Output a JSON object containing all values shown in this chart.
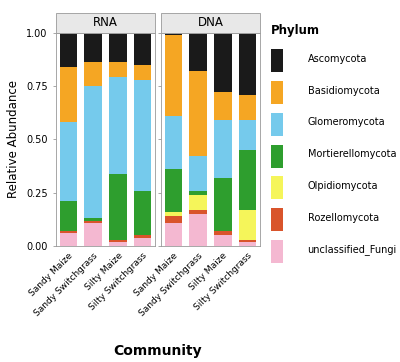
{
  "groups": [
    "RNA",
    "DNA"
  ],
  "bars": [
    "Sandy Maize",
    "Sandy Switchgrass",
    "Silty Maize",
    "Silty Switchgrass"
  ],
  "phylums": [
    "unclassified_Fungi",
    "Rozellomycota",
    "Olpidiomycota",
    "Mortierellomycota",
    "Glomeromycota",
    "Basidiomycota",
    "Ascomycota"
  ],
  "colors": [
    "#f4b8d1",
    "#d9542b",
    "#f5f55a",
    "#2e9e2e",
    "#75caec",
    "#f5a623",
    "#1a1a1a"
  ],
  "data": {
    "RNA": {
      "Sandy Maize": [
        0.06,
        0.01,
        0.0,
        0.14,
        0.37,
        0.26,
        0.16
      ],
      "Sandy Switchgrass": [
        0.11,
        0.01,
        0.0,
        0.01,
        0.62,
        0.11,
        0.14
      ],
      "Silty Maize": [
        0.02,
        0.01,
        0.0,
        0.31,
        0.45,
        0.07,
        0.14
      ],
      "Silty Switchgrass": [
        0.04,
        0.01,
        0.0,
        0.21,
        0.52,
        0.07,
        0.15
      ]
    },
    "DNA": {
      "Sandy Maize": [
        0.11,
        0.03,
        0.02,
        0.2,
        0.25,
        0.38,
        0.01
      ],
      "Sandy Switchgrass": [
        0.15,
        0.02,
        0.07,
        0.02,
        0.16,
        0.4,
        0.18
      ],
      "Silty Maize": [
        0.05,
        0.02,
        0.0,
        0.25,
        0.27,
        0.13,
        0.28
      ],
      "Silty Switchgrass": [
        0.02,
        0.01,
        0.14,
        0.28,
        0.14,
        0.12,
        0.29
      ]
    }
  },
  "legend_labels": [
    "Ascomycota",
    "Basidiomycota",
    "Glomeromycota",
    "Mortierellomycota",
    "Olpidiomycota",
    "Rozellomycota",
    "unclassified_Fungi"
  ],
  "legend_colors": [
    "#1a1a1a",
    "#f5a623",
    "#75caec",
    "#2e9e2e",
    "#f5f55a",
    "#d9542b",
    "#f4b8d1"
  ],
  "ylabel": "Relative Abundance",
  "xlabel": "Community",
  "ylim": [
    0.0,
    1.0
  ],
  "strip_bg": "#e8e8e8",
  "plot_bg": "#ffffff",
  "bar_width": 0.7
}
